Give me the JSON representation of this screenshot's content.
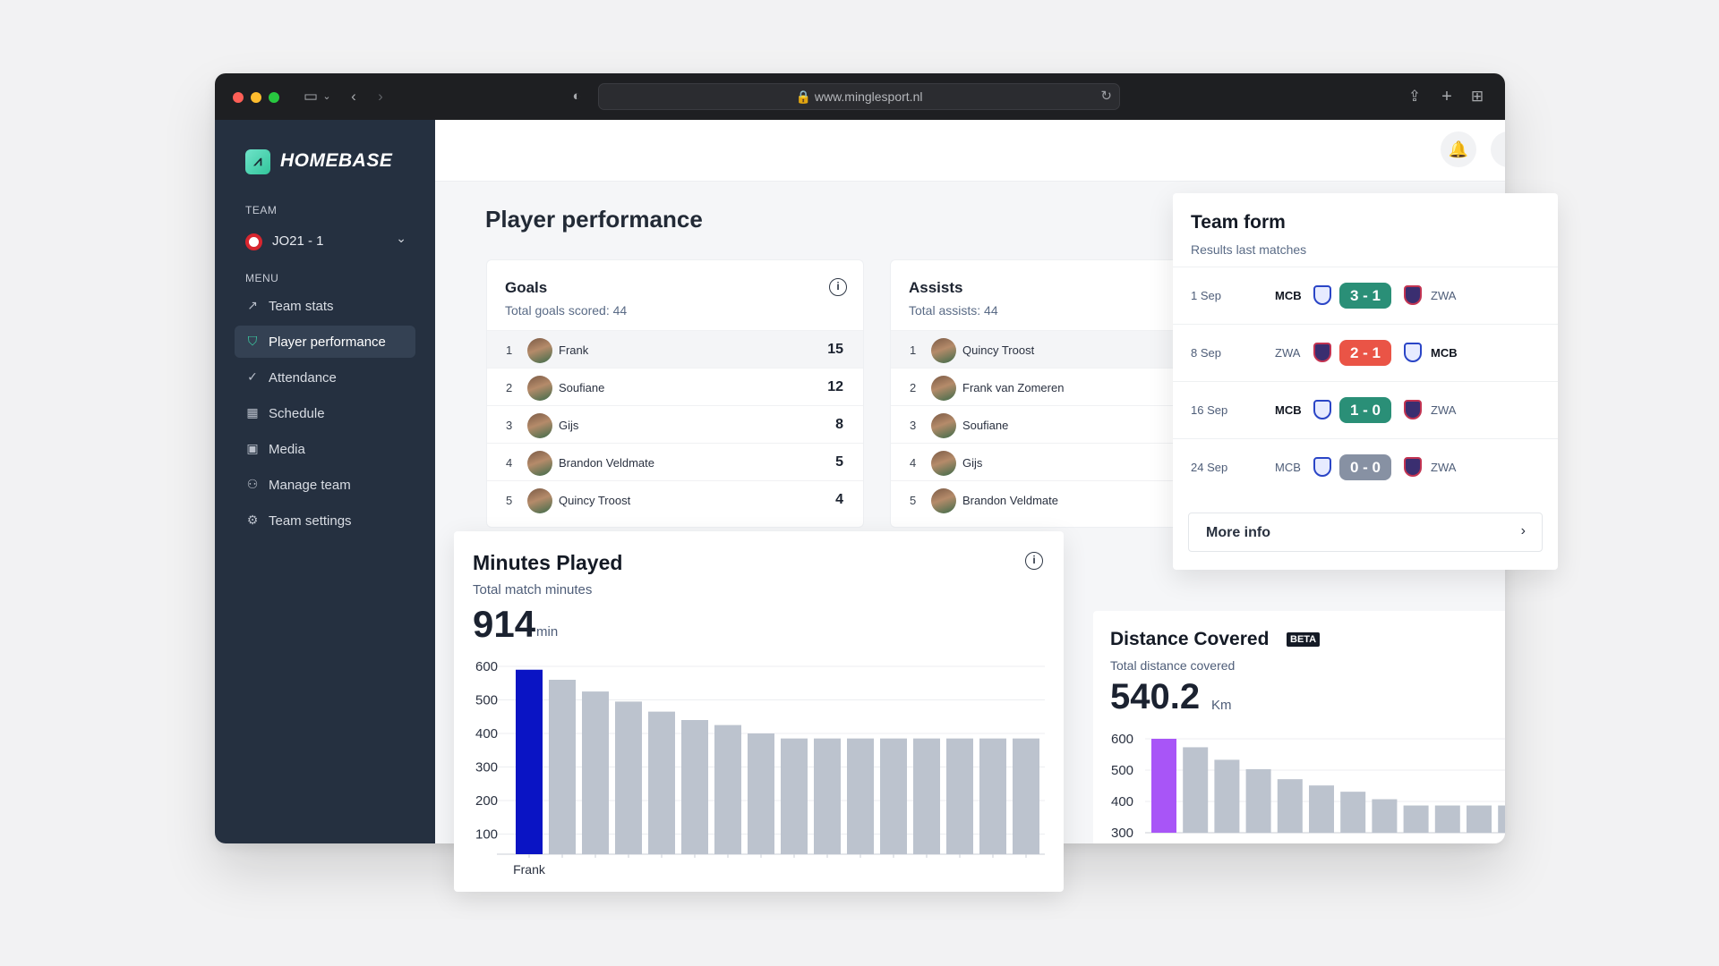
{
  "browser": {
    "url": "www.minglesport.nl"
  },
  "sidebar": {
    "brand": "HOMEBASE",
    "team_label": "TEAM",
    "team_name": "JO21 - 1",
    "menu_label": "MENU",
    "items": [
      {
        "label": "Team stats",
        "icon": "chart-line-icon"
      },
      {
        "label": "Player performance",
        "icon": "shield-icon",
        "active": true
      },
      {
        "label": "Attendance",
        "icon": "check-circle-icon"
      },
      {
        "label": "Schedule",
        "icon": "calendar-icon"
      },
      {
        "label": "Media",
        "icon": "image-icon"
      },
      {
        "label": "Manage team",
        "icon": "users-icon"
      },
      {
        "label": "Team settings",
        "icon": "gear-icon"
      }
    ]
  },
  "page": {
    "title": "Player performance"
  },
  "goals": {
    "title": "Goals",
    "subtitle": "Total goals scored: 44",
    "rows": [
      {
        "rank": "1",
        "name": "Frank",
        "value": "15"
      },
      {
        "rank": "2",
        "name": "Soufiane",
        "value": "12"
      },
      {
        "rank": "3",
        "name": "Gijs",
        "value": "8"
      },
      {
        "rank": "4",
        "name": "Brandon Veldmate",
        "value": "5"
      },
      {
        "rank": "5",
        "name": "Quincy Troost",
        "value": "4"
      }
    ]
  },
  "assists": {
    "title": "Assists",
    "subtitle": "Total assists: 44",
    "rows": [
      {
        "rank": "1",
        "name": "Quincy Troost"
      },
      {
        "rank": "2",
        "name": "Frank van Zomeren"
      },
      {
        "rank": "3",
        "name": "Soufiane"
      },
      {
        "rank": "4",
        "name": "Gijs"
      },
      {
        "rank": "5",
        "name": "Brandon Veldmate"
      }
    ]
  },
  "team_form": {
    "title": "Team form",
    "subtitle": "Results last matches",
    "matches": [
      {
        "date": "1 Sep",
        "home": "MCB",
        "away": "ZWA",
        "score": "3 - 1",
        "result": "win",
        "home_bold": true
      },
      {
        "date": "8 Sep",
        "home": "ZWA",
        "away": "MCB",
        "score": "2 - 1",
        "result": "loss",
        "away_bold": true
      },
      {
        "date": "16 Sep",
        "home": "MCB",
        "away": "ZWA",
        "score": "1 - 0",
        "result": "win",
        "home_bold": true
      },
      {
        "date": "24 Sep",
        "home": "MCB",
        "away": "ZWA",
        "score": "0 - 0",
        "result": "draw"
      }
    ],
    "more_info": "More info",
    "colors": {
      "win": "#2a8f77",
      "loss": "#ea5446",
      "draw": "#8791a3"
    }
  },
  "minutes": {
    "title": "Minutes Played",
    "subtitle": "Total match minutes",
    "value": "914",
    "unit": "min"
  },
  "distance": {
    "title": "Distance Covered",
    "badge": "BETA",
    "subtitle": "Total distance covered",
    "value": "540.2",
    "unit": "Km"
  },
  "chart_data": [
    {
      "type": "bar",
      "first_category": "Frank",
      "values": [
        590,
        560,
        525,
        495,
        465,
        440,
        425,
        400,
        385,
        385,
        385,
        385,
        385,
        385,
        385,
        385
      ],
      "ylim": [
        40,
        600
      ],
      "yticks": [
        600,
        500,
        400,
        300,
        200,
        100
      ],
      "highlight_color": "#0a14c4",
      "bar_color": "#bcc3ce",
      "grid": true
    },
    {
      "type": "bar",
      "values": [
        600,
        573,
        533,
        503,
        471,
        451,
        431,
        407,
        387,
        387,
        387,
        387
      ],
      "ylim": [
        300,
        600
      ],
      "yticks": [
        600,
        500,
        400,
        300
      ],
      "highlight_color": "#a855f7",
      "bar_color": "#bcc3ce",
      "grid": true
    }
  ]
}
